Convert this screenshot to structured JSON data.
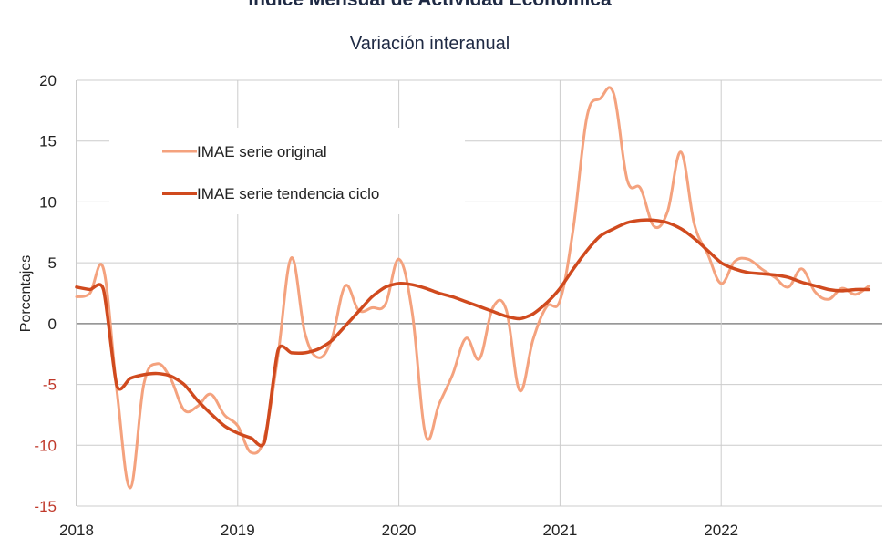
{
  "title": "Índice Mensual de  Actividad Económica",
  "subtitle": "Variación interanual",
  "colors": {
    "original": "#f4a27e",
    "trend": "#d04a1e",
    "grid": "#cccccc",
    "zero": "#8a8a8a",
    "negative_tick": "#c0392b"
  },
  "chart_data": {
    "type": "line",
    "title": "Índice Mensual de  Actividad Económica",
    "subtitle": "Variación interanual",
    "ylabel": "Porcentajes",
    "xlabel": "",
    "ylim": [
      -15,
      20
    ],
    "yticks": [
      20,
      15,
      10,
      5,
      0,
      -5,
      -10,
      -15
    ],
    "xticks": [
      "2018",
      "2019",
      "2020",
      "2021",
      "2022"
    ],
    "xlim": [
      2018.0,
      2023.0
    ],
    "grid": true,
    "legend_position": "top-left",
    "series": [
      {
        "name": "IMAE serie original",
        "color": "#f4a27e",
        "x": [
          2018.0,
          2018.083,
          2018.167,
          2018.25,
          2018.333,
          2018.417,
          2018.5,
          2018.583,
          2018.667,
          2018.75,
          2018.833,
          2018.917,
          2019.0,
          2019.083,
          2019.167,
          2019.25,
          2019.333,
          2019.417,
          2019.5,
          2019.583,
          2019.667,
          2019.75,
          2019.833,
          2019.917,
          2020.0,
          2020.083,
          2020.167,
          2020.25,
          2020.333,
          2020.417,
          2020.5,
          2020.583,
          2020.667,
          2020.75,
          2020.833,
          2020.917,
          2021.0,
          2021.083,
          2021.167,
          2021.25,
          2021.333,
          2021.417,
          2021.5,
          2021.583,
          2021.667,
          2021.75,
          2021.833,
          2021.917,
          2022.0,
          2022.083,
          2022.167,
          2022.25,
          2022.333,
          2022.417,
          2022.5,
          2022.583,
          2022.667,
          2022.75,
          2022.833,
          2022.917
        ],
        "values": [
          2.2,
          2.5,
          4.5,
          -5.5,
          -13.5,
          -5.0,
          -3.3,
          -4.5,
          -7.1,
          -6.8,
          -5.8,
          -7.5,
          -8.4,
          -10.6,
          -9.3,
          -2.6,
          5.4,
          -0.8,
          -2.8,
          -1.3,
          3.1,
          1.1,
          1.3,
          1.6,
          5.3,
          0.9,
          -9.2,
          -6.6,
          -4.2,
          -1.2,
          -2.9,
          1.3,
          1.1,
          -5.5,
          -1.3,
          1.4,
          1.9,
          7.9,
          17.0,
          18.5,
          18.9,
          11.8,
          11.1,
          8.0,
          9.2,
          14.1,
          8.2,
          5.7,
          3.3,
          5.1,
          5.3,
          4.5,
          3.8,
          3.0,
          4.5,
          2.6,
          2.0,
          2.9,
          2.4,
          3.1
        ]
      },
      {
        "name": "IMAE serie  tendencia ciclo",
        "color": "#d04a1e",
        "x": [
          2018.0,
          2018.083,
          2018.167,
          2018.25,
          2018.333,
          2018.417,
          2018.5,
          2018.583,
          2018.667,
          2018.75,
          2018.833,
          2018.917,
          2019.0,
          2019.083,
          2019.167,
          2019.25,
          2019.333,
          2019.417,
          2019.5,
          2019.583,
          2019.667,
          2019.75,
          2019.833,
          2019.917,
          2020.0,
          2020.083,
          2020.167,
          2020.25,
          2020.333,
          2020.417,
          2020.5,
          2020.583,
          2020.667,
          2020.75,
          2020.833,
          2020.917,
          2021.0,
          2021.083,
          2021.167,
          2021.25,
          2021.333,
          2021.417,
          2021.5,
          2021.583,
          2021.667,
          2021.75,
          2021.833,
          2021.917,
          2022.0,
          2022.083,
          2022.167,
          2022.25,
          2022.333,
          2022.417,
          2022.5,
          2022.583,
          2022.667,
          2022.75,
          2022.833,
          2022.917
        ],
        "values": [
          3.0,
          2.8,
          2.8,
          -5.1,
          -4.5,
          -4.2,
          -4.1,
          -4.3,
          -5.0,
          -6.3,
          -7.4,
          -8.4,
          -9.0,
          -9.4,
          -9.7,
          -2.2,
          -2.4,
          -2.4,
          -2.1,
          -1.4,
          -0.2,
          1.0,
          2.2,
          3.0,
          3.3,
          3.2,
          2.9,
          2.5,
          2.2,
          1.8,
          1.4,
          1.0,
          0.6,
          0.4,
          0.8,
          1.7,
          2.9,
          4.5,
          6.0,
          7.2,
          7.8,
          8.3,
          8.5,
          8.5,
          8.3,
          7.8,
          7.0,
          6.0,
          5.0,
          4.5,
          4.2,
          4.1,
          4.0,
          3.8,
          3.4,
          3.1,
          2.8,
          2.7,
          2.8,
          2.8
        ]
      }
    ]
  }
}
